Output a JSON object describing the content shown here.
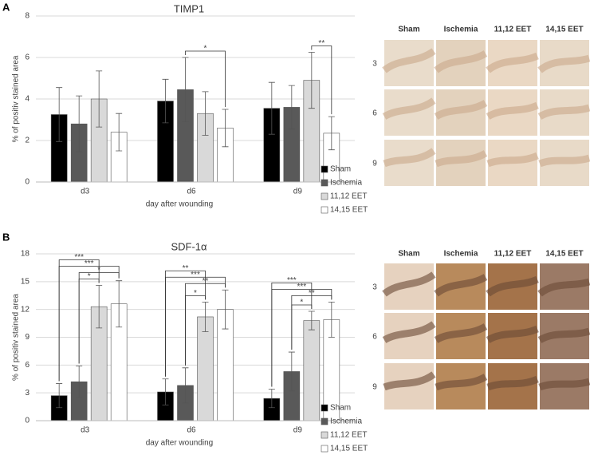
{
  "panel_labels": [
    "A",
    "B"
  ],
  "chart_data": [
    {
      "type": "bar",
      "title": "TIMP1",
      "xlabel": "day after wounding",
      "ylabel": "% of positiv stained area",
      "categories": [
        "d3",
        "d6",
        "d9"
      ],
      "ylim": [
        0,
        8
      ],
      "yticks": [
        0,
        2,
        4,
        6,
        8
      ],
      "grid": true,
      "legend": "lower right",
      "series": [
        {
          "name": "Sham",
          "color": "#000000",
          "values": [
            3.25,
            3.9,
            3.55
          ],
          "errors": [
            1.3,
            1.05,
            1.25
          ]
        },
        {
          "name": "Ischemia",
          "color": "#595959",
          "values": [
            2.8,
            4.45,
            3.6
          ],
          "errors": [
            1.35,
            1.55,
            1.05
          ]
        },
        {
          "name": "11,12 EET",
          "color": "#d9d9d9",
          "values": [
            4.0,
            3.3,
            4.9
          ],
          "errors": [
            1.35,
            1.05,
            1.35
          ]
        },
        {
          "name": "14,15 EET",
          "color": "#ffffff",
          "values": [
            2.4,
            2.6,
            2.35
          ],
          "errors": [
            0.9,
            0.9,
            0.8
          ]
        }
      ],
      "annotations": [
        {
          "category": 1,
          "between": [
            1,
            3
          ],
          "label": "*"
        },
        {
          "category": 2,
          "between": [
            2,
            3
          ],
          "label": "**"
        }
      ]
    },
    {
      "type": "bar",
      "title": "SDF-1α",
      "xlabel": "day after wounding",
      "ylabel": "% of positiv stained area",
      "categories": [
        "d3",
        "d6",
        "d9"
      ],
      "ylim": [
        0,
        18
      ],
      "yticks": [
        0,
        3,
        6,
        9,
        12,
        15,
        18
      ],
      "grid": true,
      "legend": "lower right",
      "series": [
        {
          "name": "Sham",
          "color": "#000000",
          "values": [
            2.7,
            3.1,
            2.4
          ],
          "errors": [
            1.3,
            1.4,
            1.0
          ]
        },
        {
          "name": "Ischemia",
          "color": "#595959",
          "values": [
            4.2,
            3.8,
            5.3
          ],
          "errors": [
            1.7,
            1.9,
            2.1
          ]
        },
        {
          "name": "11,12 EET",
          "color": "#d9d9d9",
          "values": [
            12.3,
            11.2,
            10.8
          ],
          "errors": [
            2.3,
            1.6,
            1.0
          ]
        },
        {
          "name": "14,15 EET",
          "color": "#ffffff",
          "values": [
            12.6,
            12.0,
            10.9
          ],
          "errors": [
            2.5,
            2.1,
            1.9
          ]
        }
      ],
      "annotations": [
        {
          "category": 0,
          "between": [
            1,
            2
          ],
          "label": "*"
        },
        {
          "category": 0,
          "between": [
            1,
            3
          ],
          "label": "*"
        },
        {
          "category": 0,
          "between": [
            0,
            3
          ],
          "label": "***"
        },
        {
          "category": 0,
          "between": [
            0,
            2
          ],
          "label": "***"
        },
        {
          "category": 1,
          "between": [
            1,
            2
          ],
          "label": "*"
        },
        {
          "category": 1,
          "between": [
            1,
            3
          ],
          "label": "**"
        },
        {
          "category": 1,
          "between": [
            0,
            3
          ],
          "label": "***"
        },
        {
          "category": 1,
          "between": [
            0,
            2
          ],
          "label": "**"
        },
        {
          "category": 2,
          "between": [
            1,
            2
          ],
          "label": "*"
        },
        {
          "category": 2,
          "between": [
            1,
            3
          ],
          "label": "**"
        },
        {
          "category": 2,
          "between": [
            0,
            3
          ],
          "label": "***"
        },
        {
          "category": 2,
          "between": [
            0,
            2
          ],
          "label": "***"
        }
      ]
    }
  ],
  "image_grids": [
    {
      "columns": [
        "Sham",
        "Ischemia",
        "11,12 EET",
        "14,15 EET"
      ],
      "rows": [
        "3",
        "6",
        "9"
      ]
    },
    {
      "columns": [
        "Sham",
        "Ischemia",
        "11,12 EET",
        "14,15 EET"
      ],
      "rows": [
        "3",
        "6",
        "9"
      ]
    }
  ]
}
